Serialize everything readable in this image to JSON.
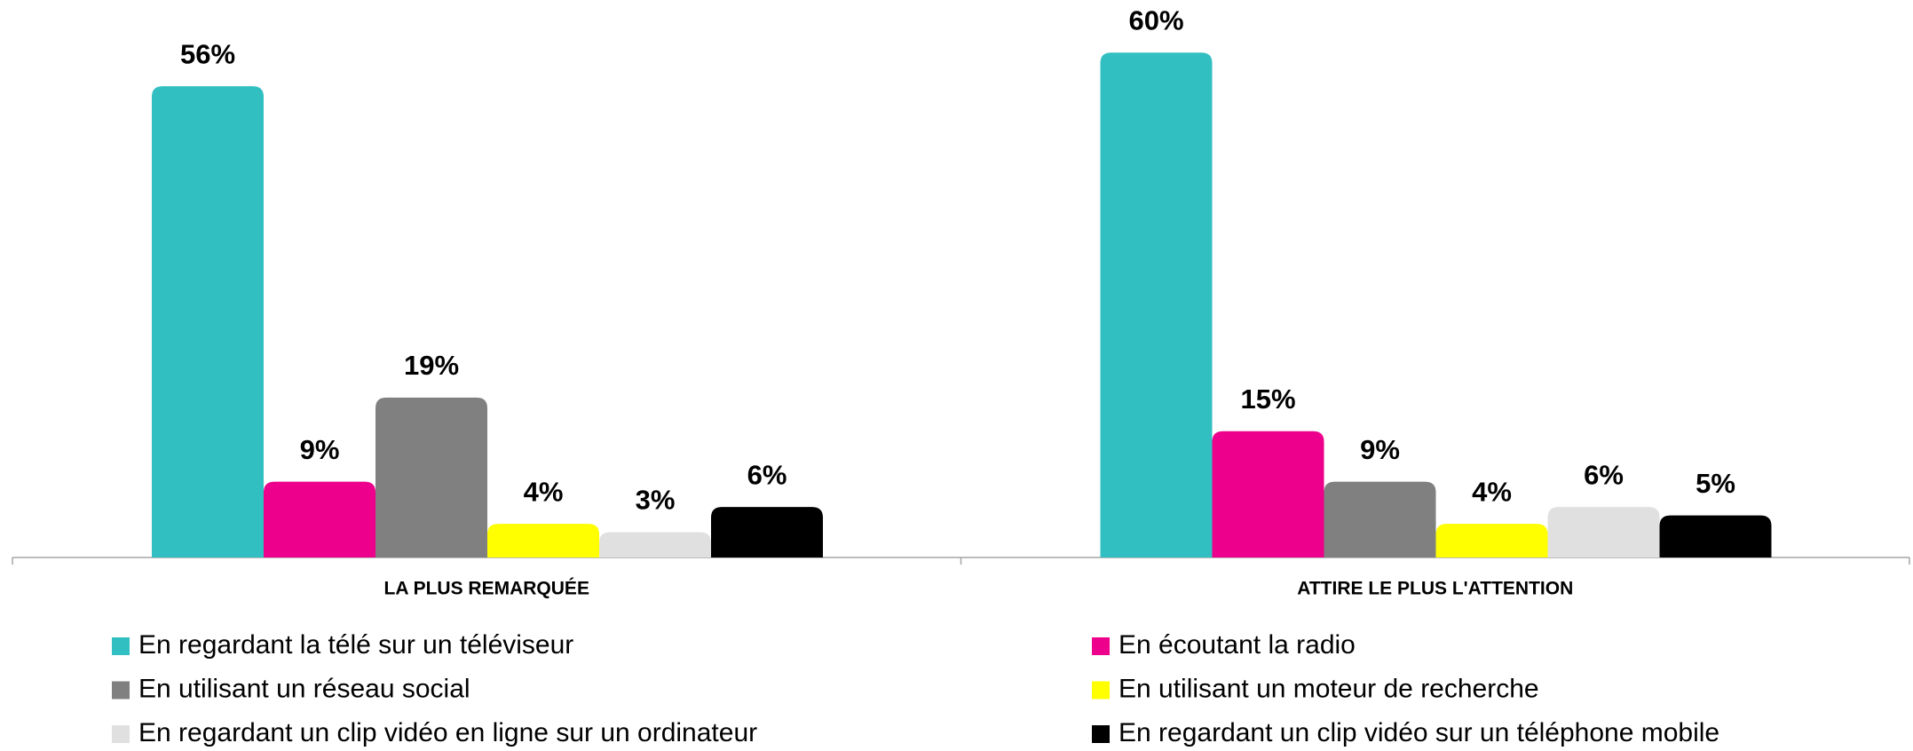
{
  "chart_data": {
    "type": "bar",
    "categories": [
      "LA PLUS REMARQUÉE",
      "ATTIRE LE PLUS L'ATTENTION"
    ],
    "series": [
      {
        "name": "En regardant la télé sur un téléviseur",
        "color": "#31bfc1",
        "values": [
          56,
          60
        ],
        "value_labels": [
          "56%",
          "60%"
        ]
      },
      {
        "name": "En écoutant la radio",
        "color": "#ec008c",
        "values": [
          9,
          15
        ],
        "value_labels": [
          "9%",
          "15%"
        ]
      },
      {
        "name": "En utilisant un réseau social",
        "color": "#808080",
        "values": [
          19,
          9
        ],
        "value_labels": [
          "19%",
          "9%"
        ]
      },
      {
        "name": "En utilisant un moteur de recherche",
        "color": "#ffff00",
        "values": [
          4,
          4
        ],
        "value_labels": [
          "4%",
          "4%"
        ]
      },
      {
        "name": "En regardant un clip vidéo en ligne sur un ordinateur",
        "color": "#e0e0e0",
        "values": [
          3,
          6
        ],
        "value_labels": [
          "3%",
          "6%"
        ]
      },
      {
        "name": "En regardant un clip vidéo sur un téléphone mobile",
        "color": "#000000",
        "values": [
          6,
          5
        ],
        "value_labels": [
          "6%",
          "5%"
        ]
      }
    ]
  }
}
